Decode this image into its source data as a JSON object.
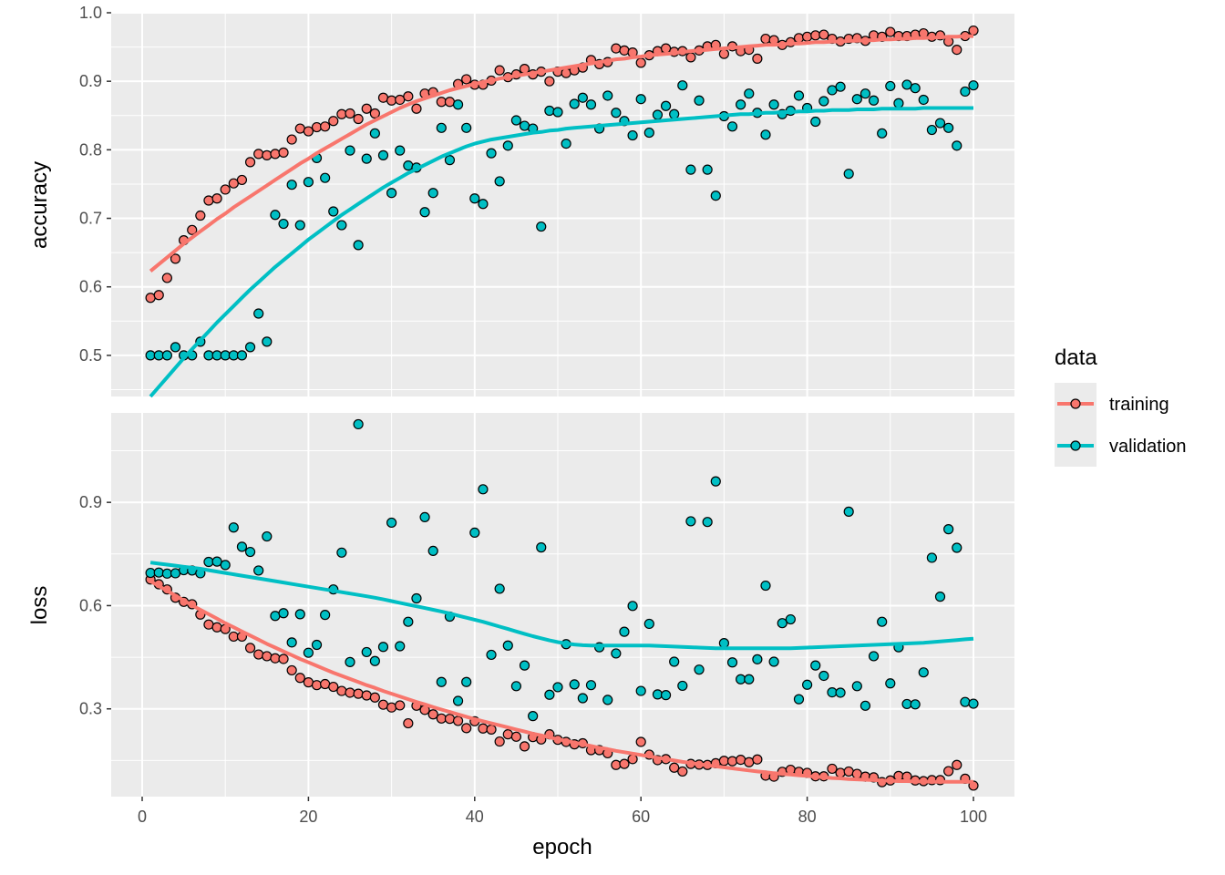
{
  "chart_data": {
    "type": "scatter",
    "x_label": "epoch",
    "x_range": [
      0,
      100
    ],
    "x_ticks": [
      "0",
      "20",
      "40",
      "60",
      "80",
      "100"
    ],
    "legend": {
      "title": "data",
      "position": "right",
      "entries": [
        {
          "label": "training",
          "color": "#F8766D"
        },
        {
          "label": "validation",
          "color": "#00BFC4"
        }
      ]
    },
    "colors": {
      "training": "#F8766D",
      "validation": "#00BFC4",
      "panel_bg": "#EBEBEB",
      "grid": "#FFFFFF"
    },
    "panels": [
      {
        "name": "accuracy",
        "ylabel": "accuracy",
        "ylim": [
          0.44,
          1.0
        ],
        "y_ticks": [
          "0.5",
          "0.6",
          "0.7",
          "0.8",
          "0.9",
          "1.0"
        ],
        "series": [
          {
            "name": "training",
            "values": [
              0.584,
              0.588,
              0.613,
              0.641,
              0.668,
              0.683,
              0.704,
              0.726,
              0.729,
              0.742,
              0.751,
              0.756,
              0.782,
              0.794,
              0.792,
              0.794,
              0.796,
              0.815,
              0.831,
              0.827,
              0.833,
              0.834,
              0.842,
              0.852,
              0.853,
              0.845,
              0.86,
              0.853,
              0.876,
              0.872,
              0.873,
              0.878,
              0.86,
              0.882,
              0.884,
              0.87,
              0.87,
              0.896,
              0.903,
              0.895,
              0.895,
              0.901,
              0.916,
              0.906,
              0.91,
              0.918,
              0.91,
              0.914,
              0.9,
              0.914,
              0.912,
              0.916,
              0.92,
              0.931,
              0.925,
              0.928,
              0.948,
              0.945,
              0.942,
              0.927,
              0.938,
              0.944,
              0.948,
              0.943,
              0.944,
              0.935,
              0.945,
              0.951,
              0.953,
              0.94,
              0.951,
              0.944,
              0.946,
              0.933,
              0.962,
              0.96,
              0.953,
              0.957,
              0.963,
              0.965,
              0.967,
              0.968,
              0.962,
              0.958,
              0.962,
              0.963,
              0.959,
              0.967,
              0.965,
              0.972,
              0.966,
              0.966,
              0.968,
              0.97,
              0.965,
              0.967,
              0.958,
              0.946,
              0.966,
              0.974
            ],
            "smooth": [
              0.623,
              0.633,
              0.643,
              0.653,
              0.663,
              0.672,
              0.681,
              0.69,
              0.699,
              0.707,
              0.716,
              0.724,
              0.732,
              0.74,
              0.748,
              0.756,
              0.764,
              0.772,
              0.78,
              0.787,
              0.795,
              0.802,
              0.809,
              0.816,
              0.823,
              0.83,
              0.837,
              0.843,
              0.849,
              0.855,
              0.861,
              0.866,
              0.871,
              0.875,
              0.879,
              0.883,
              0.887,
              0.89,
              0.893,
              0.896,
              0.899,
              0.901,
              0.904,
              0.906,
              0.908,
              0.91,
              0.912,
              0.914,
              0.916,
              0.918,
              0.92,
              0.922,
              0.924,
              0.926,
              0.928,
              0.93,
              0.932,
              0.933,
              0.935,
              0.936,
              0.938,
              0.939,
              0.94,
              0.941,
              0.943,
              0.944,
              0.945,
              0.946,
              0.947,
              0.948,
              0.949,
              0.95,
              0.951,
              0.952,
              0.953,
              0.953,
              0.954,
              0.955,
              0.955,
              0.956,
              0.957,
              0.957,
              0.958,
              0.958,
              0.959,
              0.959,
              0.96,
              0.96,
              0.961,
              0.961,
              0.962,
              0.962,
              0.963,
              0.963,
              0.964,
              0.964,
              0.965,
              0.965,
              0.966,
              0.966
            ]
          },
          {
            "name": "validation",
            "values": [
              0.5,
              0.5,
              0.5,
              0.512,
              0.5,
              0.5,
              0.52,
              0.5,
              0.5,
              0.5,
              0.5,
              0.5,
              0.512,
              0.561,
              0.52,
              0.705,
              0.692,
              0.749,
              0.69,
              0.753,
              0.788,
              0.759,
              0.71,
              0.69,
              0.799,
              0.661,
              0.787,
              0.824,
              0.792,
              0.737,
              0.799,
              0.777,
              0.774,
              0.709,
              0.737,
              0.832,
              0.785,
              0.866,
              0.832,
              0.729,
              0.721,
              0.795,
              0.754,
              0.806,
              0.843,
              0.835,
              0.831,
              0.688,
              0.857,
              0.855,
              0.809,
              0.867,
              0.876,
              0.866,
              0.831,
              0.879,
              0.854,
              0.842,
              0.821,
              0.874,
              0.825,
              0.851,
              0.864,
              0.852,
              0.894,
              0.771,
              0.872,
              0.771,
              0.733,
              0.849,
              0.834,
              0.866,
              0.882,
              0.854,
              0.822,
              0.866,
              0.852,
              0.857,
              0.879,
              0.861,
              0.841,
              0.871,
              0.887,
              0.892,
              0.765,
              0.874,
              0.882,
              0.872,
              0.824,
              0.893,
              0.868,
              0.895,
              0.89,
              0.873,
              0.829,
              0.839,
              0.832,
              0.806,
              0.885,
              0.894
            ],
            "smooth": [
              0.44,
              0.454,
              0.468,
              0.482,
              0.496,
              0.509,
              0.522,
              0.535,
              0.548,
              0.56,
              0.572,
              0.584,
              0.596,
              0.607,
              0.618,
              0.629,
              0.639,
              0.649,
              0.659,
              0.669,
              0.678,
              0.687,
              0.696,
              0.705,
              0.713,
              0.721,
              0.729,
              0.737,
              0.745,
              0.752,
              0.759,
              0.766,
              0.772,
              0.778,
              0.784,
              0.79,
              0.795,
              0.8,
              0.805,
              0.809,
              0.812,
              0.815,
              0.817,
              0.819,
              0.821,
              0.823,
              0.825,
              0.826,
              0.828,
              0.829,
              0.831,
              0.832,
              0.833,
              0.834,
              0.835,
              0.836,
              0.837,
              0.838,
              0.839,
              0.84,
              0.841,
              0.842,
              0.843,
              0.844,
              0.845,
              0.846,
              0.847,
              0.848,
              0.849,
              0.85,
              0.851,
              0.852,
              0.852,
              0.853,
              0.854,
              0.854,
              0.855,
              0.855,
              0.856,
              0.856,
              0.857,
              0.857,
              0.858,
              0.858,
              0.858,
              0.859,
              0.859,
              0.859,
              0.86,
              0.86,
              0.86,
              0.86,
              0.86,
              0.861,
              0.861,
              0.861,
              0.861,
              0.861,
              0.861,
              0.861
            ]
          }
        ]
      },
      {
        "name": "loss",
        "ylabel": "loss",
        "ylim": [
          0.045,
          1.16
        ],
        "y_ticks": [
          "0.3",
          "0.6",
          "0.9"
        ],
        "series": [
          {
            "name": "training",
            "values": [
              0.676,
              0.662,
              0.647,
              0.623,
              0.611,
              0.604,
              0.574,
              0.545,
              0.537,
              0.532,
              0.51,
              0.51,
              0.477,
              0.458,
              0.453,
              0.447,
              0.445,
              0.412,
              0.39,
              0.377,
              0.369,
              0.372,
              0.364,
              0.352,
              0.347,
              0.344,
              0.339,
              0.333,
              0.312,
              0.304,
              0.31,
              0.258,
              0.309,
              0.297,
              0.284,
              0.272,
              0.271,
              0.265,
              0.244,
              0.264,
              0.243,
              0.24,
              0.205,
              0.226,
              0.219,
              0.191,
              0.218,
              0.211,
              0.226,
              0.21,
              0.204,
              0.197,
              0.2,
              0.18,
              0.18,
              0.171,
              0.137,
              0.14,
              0.154,
              0.204,
              0.167,
              0.151,
              0.154,
              0.129,
              0.118,
              0.14,
              0.138,
              0.137,
              0.142,
              0.149,
              0.148,
              0.152,
              0.145,
              0.153,
              0.106,
              0.103,
              0.117,
              0.123,
              0.117,
              0.114,
              0.104,
              0.104,
              0.126,
              0.114,
              0.118,
              0.111,
              0.103,
              0.101,
              0.087,
              0.092,
              0.105,
              0.103,
              0.092,
              0.09,
              0.093,
              0.093,
              0.119,
              0.137,
              0.097,
              0.077
            ],
            "smooth": [
              0.671,
              0.657,
              0.643,
              0.629,
              0.615,
              0.601,
              0.588,
              0.575,
              0.562,
              0.549,
              0.537,
              0.525,
              0.513,
              0.501,
              0.489,
              0.478,
              0.467,
              0.456,
              0.445,
              0.435,
              0.425,
              0.415,
              0.405,
              0.396,
              0.387,
              0.378,
              0.369,
              0.361,
              0.352,
              0.344,
              0.336,
              0.328,
              0.32,
              0.313,
              0.305,
              0.298,
              0.291,
              0.284,
              0.277,
              0.27,
              0.264,
              0.258,
              0.252,
              0.246,
              0.24,
              0.234,
              0.228,
              0.223,
              0.217,
              0.212,
              0.207,
              0.202,
              0.197,
              0.192,
              0.187,
              0.183,
              0.178,
              0.174,
              0.17,
              0.166,
              0.162,
              0.158,
              0.154,
              0.15,
              0.146,
              0.143,
              0.139,
              0.136,
              0.133,
              0.13,
              0.127,
              0.124,
              0.121,
              0.118,
              0.116,
              0.113,
              0.111,
              0.109,
              0.107,
              0.105,
              0.103,
              0.101,
              0.099,
              0.098,
              0.096,
              0.095,
              0.094,
              0.093,
              0.092,
              0.091,
              0.09,
              0.09,
              0.089,
              0.089,
              0.088,
              0.088,
              0.088,
              0.088,
              0.088,
              0.088
            ]
          },
          {
            "name": "validation",
            "values": [
              0.695,
              0.696,
              0.693,
              0.694,
              0.703,
              0.702,
              0.694,
              0.727,
              0.728,
              0.718,
              0.827,
              0.771,
              0.756,
              0.702,
              0.801,
              0.57,
              0.578,
              0.493,
              0.575,
              0.463,
              0.486,
              0.573,
              0.647,
              0.754,
              0.436,
              1.127,
              0.465,
              0.439,
              0.48,
              0.841,
              0.482,
              0.553,
              0.621,
              0.857,
              0.759,
              0.378,
              0.568,
              0.323,
              0.378,
              0.812,
              0.938,
              0.457,
              0.649,
              0.484,
              0.366,
              0.426,
              0.279,
              0.769,
              0.341,
              0.363,
              0.488,
              0.371,
              0.331,
              0.369,
              0.479,
              0.326,
              0.461,
              0.524,
              0.599,
              0.352,
              0.547,
              0.342,
              0.34,
              0.437,
              0.367,
              0.845,
              0.414,
              0.843,
              0.961,
              0.491,
              0.435,
              0.386,
              0.386,
              0.444,
              0.658,
              0.437,
              0.549,
              0.56,
              0.328,
              0.37,
              0.426,
              0.396,
              0.348,
              0.347,
              0.873,
              0.366,
              0.309,
              0.453,
              0.553,
              0.374,
              0.479,
              0.314,
              0.313,
              0.406,
              0.739,
              0.626,
              0.822,
              0.768,
              0.32,
              0.315
            ],
            "smooth": [
              0.725,
              0.722,
              0.719,
              0.716,
              0.713,
              0.71,
              0.707,
              0.703,
              0.699,
              0.695,
              0.691,
              0.687,
              0.683,
              0.679,
              0.675,
              0.671,
              0.667,
              0.663,
              0.659,
              0.655,
              0.651,
              0.647,
              0.643,
              0.639,
              0.635,
              0.631,
              0.627,
              0.623,
              0.618,
              0.613,
              0.608,
              0.603,
              0.598,
              0.593,
              0.588,
              0.583,
              0.577,
              0.571,
              0.565,
              0.559,
              0.553,
              0.546,
              0.539,
              0.532,
              0.525,
              0.518,
              0.511,
              0.505,
              0.499,
              0.494,
              0.49,
              0.487,
              0.485,
              0.484,
              0.484,
              0.484,
              0.484,
              0.484,
              0.484,
              0.484,
              0.484,
              0.483,
              0.482,
              0.481,
              0.48,
              0.479,
              0.478,
              0.477,
              0.476,
              0.476,
              0.476,
              0.476,
              0.476,
              0.476,
              0.476,
              0.476,
              0.476,
              0.476,
              0.477,
              0.478,
              0.479,
              0.48,
              0.481,
              0.482,
              0.483,
              0.484,
              0.485,
              0.486,
              0.487,
              0.488,
              0.489,
              0.49,
              0.491,
              0.492,
              0.494,
              0.496,
              0.498,
              0.5,
              0.502,
              0.504
            ]
          }
        ]
      }
    ]
  }
}
